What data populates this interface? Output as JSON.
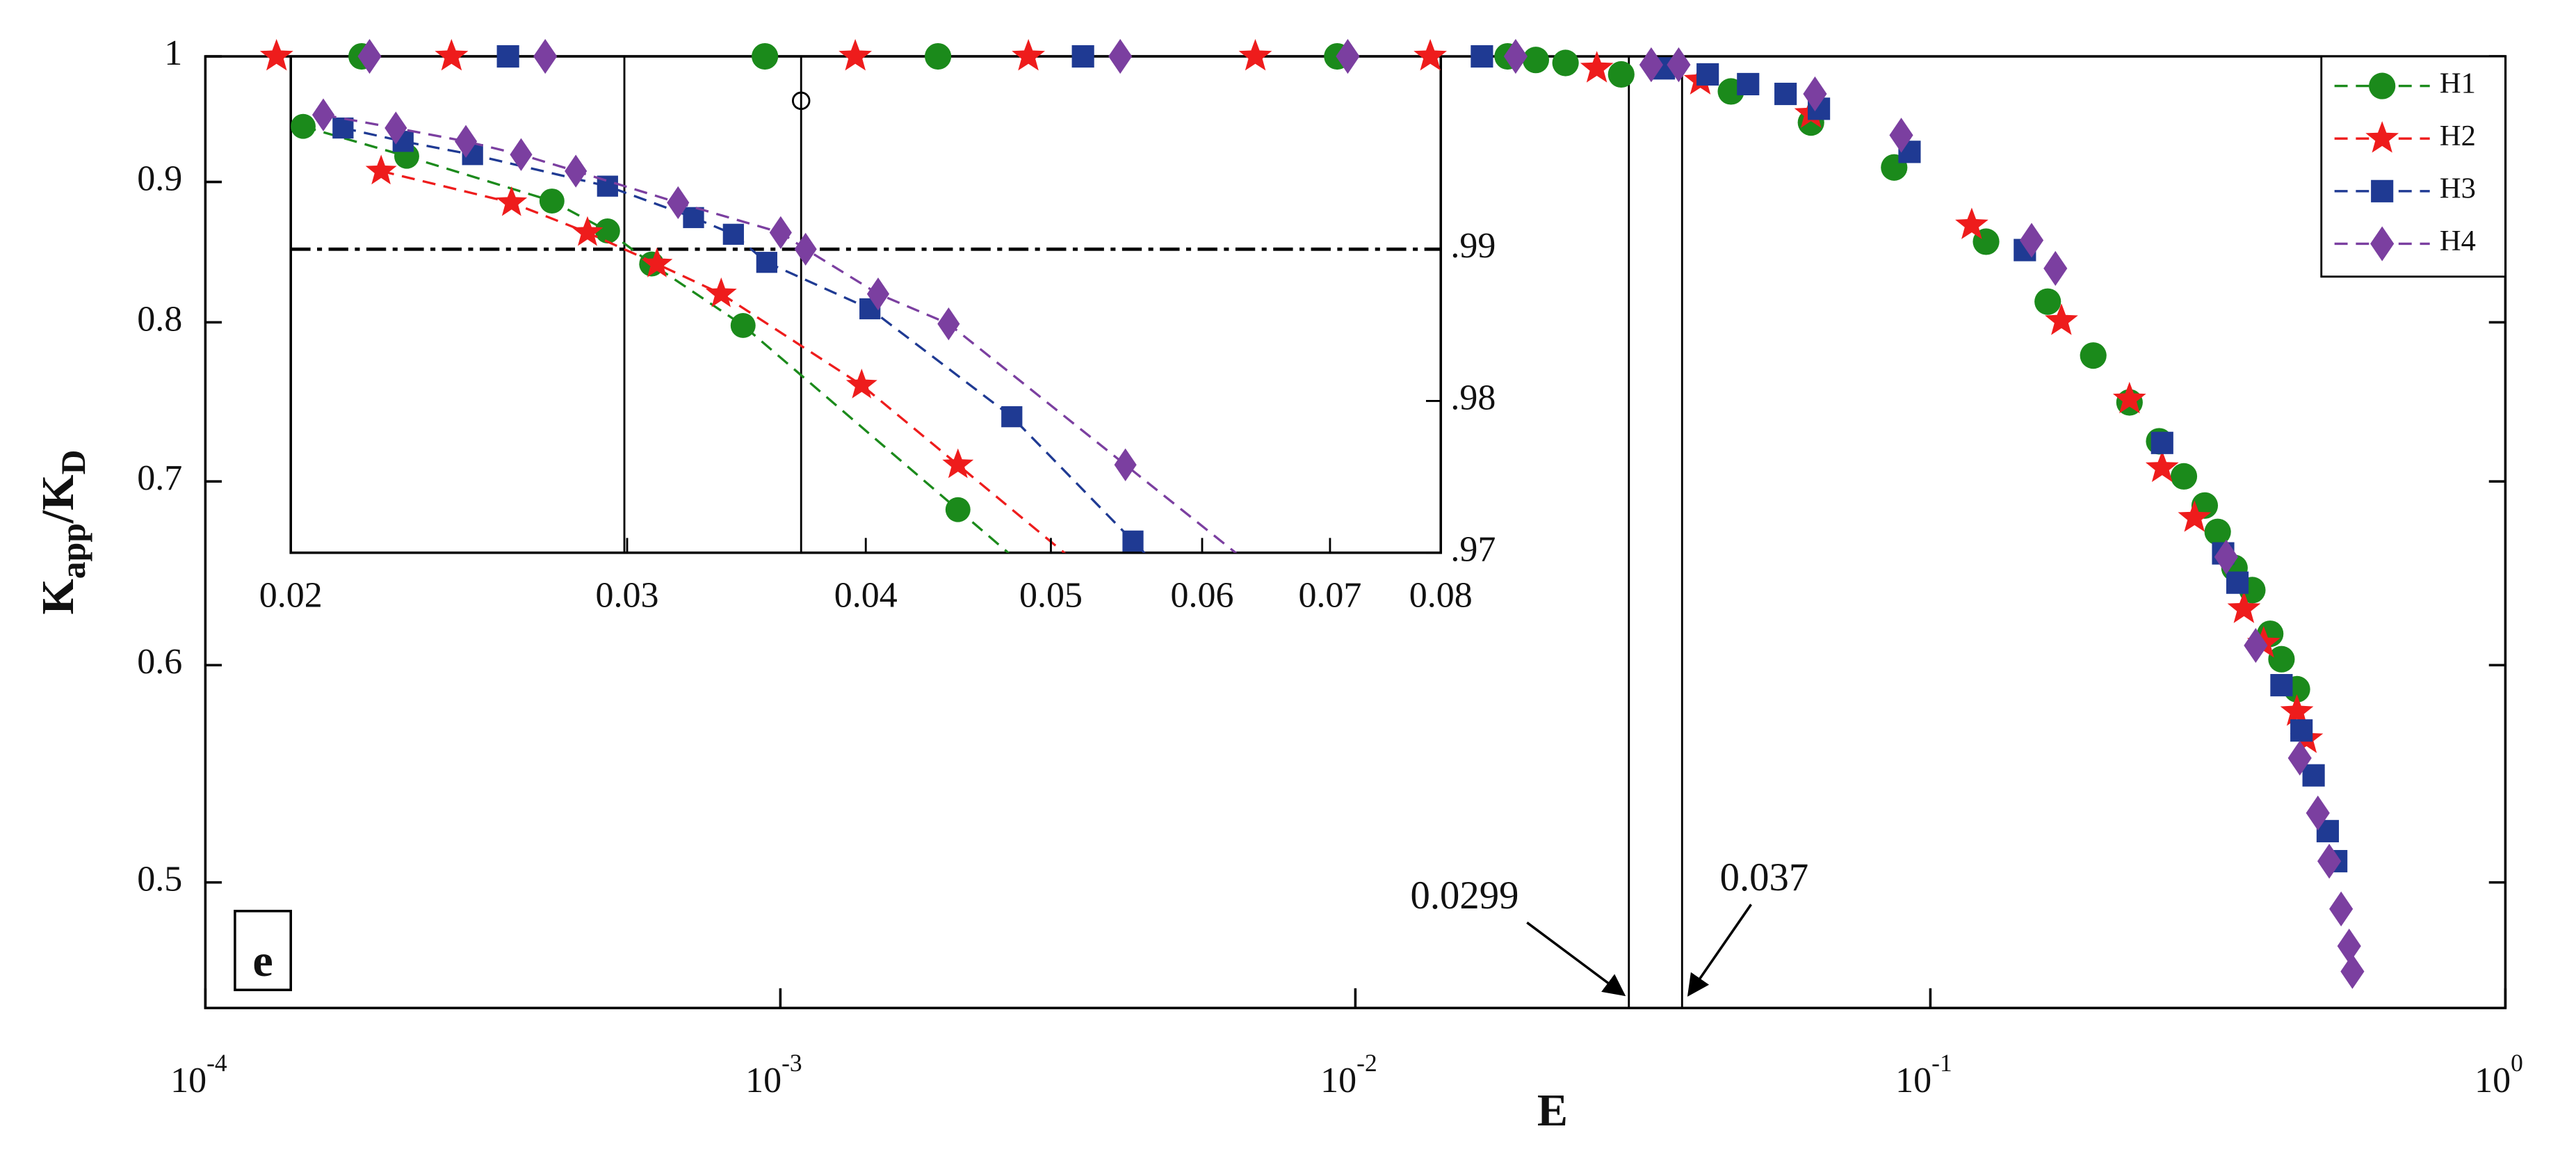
{
  "chart_data": [
    {
      "type": "scatter",
      "xlabel": "E",
      "ylabel": [
        "K",
        "app",
        "/K",
        "D"
      ],
      "panel_label": "e",
      "xscale": "log",
      "yscale": "log",
      "xlim": [
        0.0001,
        1
      ],
      "ylim": [
        0.45,
        1
      ],
      "xticks": [
        {
          "value": 0.0001,
          "label": "10",
          "exponent": "-4"
        },
        {
          "value": 0.001,
          "label": "10",
          "exponent": "-3"
        },
        {
          "value": 0.01,
          "label": "10",
          "exponent": "-2"
        },
        {
          "value": 0.1,
          "label": "10",
          "exponent": "-1"
        },
        {
          "value": 1,
          "label": "10",
          "exponent": "0"
        }
      ],
      "yticks": [
        0.5,
        0.6,
        0.7,
        0.8,
        0.9,
        1
      ],
      "legend": "upper right",
      "annotations": [
        {
          "text": "0.0299",
          "x": 0.0299
        },
        {
          "text": "0.037",
          "x": 0.037
        }
      ],
      "series": [
        {
          "name": "H1",
          "color": "#1b8a1b",
          "marker": "circle",
          "x": [
            0.000187,
            0.00094,
            0.00188,
            0.0093,
            0.0184,
            0.0206,
            0.0232,
            0.029,
            0.045,
            0.062,
            0.0865,
            0.125,
            0.16,
            0.192,
            0.222,
            0.25,
            0.276,
            0.3,
            0.316,
            0.338,
            0.363,
            0.39,
            0.408,
            0.434
          ],
          "values": [
            1,
            1,
            1,
            1,
            1,
            0.997,
            0.9945,
            0.985,
            0.971,
            0.946,
            0.911,
            0.856,
            0.814,
            0.778,
            0.748,
            0.724,
            0.703,
            0.686,
            0.671,
            0.651,
            0.639,
            0.616,
            0.603,
            0.588
          ]
        },
        {
          "name": "H2",
          "color": "#ee1c1c",
          "marker": "star",
          "x": [
            0.000133,
            0.000268,
            0.00135,
            0.0027,
            0.0067,
            0.0135,
            0.0263,
            0.0398,
            0.062,
            0.118,
            0.169,
            0.222,
            0.253,
            0.288,
            0.351,
            0.38,
            0.434,
            0.451
          ],
          "values": [
            1,
            1,
            1,
            1,
            1,
            1,
            0.99,
            0.98,
            0.953,
            0.868,
            0.801,
            0.75,
            0.708,
            0.679,
            0.629,
            0.611,
            0.577,
            0.564
          ]
        },
        {
          "name": "H3",
          "color": "#1f3a93",
          "marker": "square",
          "x": [
            0.000336,
            0.00336,
            0.0166,
            0.0344,
            0.041,
            0.0482,
            0.056,
            0.064,
            0.092,
            0.146,
            0.253,
            0.323,
            0.342,
            0.408,
            0.442,
            0.464,
            0.491,
            0.508
          ],
          "values": [
            1,
            1,
            1,
            0.99,
            0.985,
            0.977,
            0.969,
            0.957,
            0.923,
            0.85,
            0.723,
            0.659,
            0.643,
            0.59,
            0.568,
            0.547,
            0.522,
            0.509
          ]
        },
        {
          "name": "H4",
          "color": "#7b3fa0",
          "marker": "diamond",
          "x": [
            0.000193,
            0.00039,
            0.0039,
            0.0097,
            0.019,
            0.0327,
            0.0365,
            0.063,
            0.089,
            0.15,
            0.165,
            0.327,
            0.368,
            0.439,
            0.472,
            0.494,
            0.518,
            0.535,
            0.542
          ],
          "values": [
            1,
            1,
            1,
            1,
            1,
            0.993,
            0.993,
            0.969,
            0.936,
            0.857,
            0.837,
            0.657,
            0.61,
            0.555,
            0.53,
            0.509,
            0.489,
            0.474,
            0.464
          ]
        }
      ]
    },
    {
      "type": "line",
      "xscale": "log",
      "xlim": [
        0.02,
        0.08
      ],
      "ylim": [
        0.97,
        1.0027
      ],
      "xticks": [
        0.02,
        0.03,
        0.04,
        0.05,
        0.06,
        0.07,
        0.08
      ],
      "yticks": [
        {
          "value": 0.99,
          "label": ".99"
        },
        {
          "value": 0.98,
          "label": ".98"
        },
        {
          "value": 0.97,
          "label": ".97"
        }
      ],
      "vlines": [
        0.0299,
        0.037
      ],
      "hline": 0.99,
      "series": [
        {
          "color": "#1b8a1b",
          "marker": "circle",
          "x": [
            0.0203,
            0.023,
            0.0274,
            0.0293,
            0.0309,
            0.0345,
            0.0447
          ],
          "values": [
            0.99809,
            0.99612,
            0.99317,
            0.9912,
            0.98902,
            0.98497,
            0.97284
          ]
        },
        {
          "color": "#ee1c1c",
          "marker": "star",
          "x": [
            0.0223,
            0.0261,
            0.0286,
            0.0311,
            0.0336,
            0.0398,
            0.0447
          ],
          "values": [
            0.99514,
            0.99306,
            0.99109,
            0.98902,
            0.98705,
            0.98104,
            0.97579
          ]
        },
        {
          "color": "#1f3a93",
          "marker": "square",
          "x": [
            0.0213,
            0.0229,
            0.0249,
            0.0293,
            0.0325,
            0.0341,
            0.0355,
            0.0402,
            0.0477,
            0.0552
          ],
          "values": [
            0.99798,
            0.9971,
            0.99623,
            0.99415,
            0.99208,
            0.99098,
            0.98913,
            0.98607,
            0.97896,
            0.97077
          ]
        },
        {
          "color": "#7b3fa0",
          "marker": "diamond",
          "x": [
            0.0208,
            0.0227,
            0.0247,
            0.0264,
            0.0282,
            0.0319,
            0.0361,
            0.0372,
            0.0406,
            0.0442,
            0.0547
          ],
          "values": [
            0.99885,
            0.99798,
            0.9971,
            0.99623,
            0.99514,
            0.99306,
            0.99109,
            0.99,
            0.98705,
            0.98508,
            0.97579
          ]
        }
      ]
    }
  ]
}
